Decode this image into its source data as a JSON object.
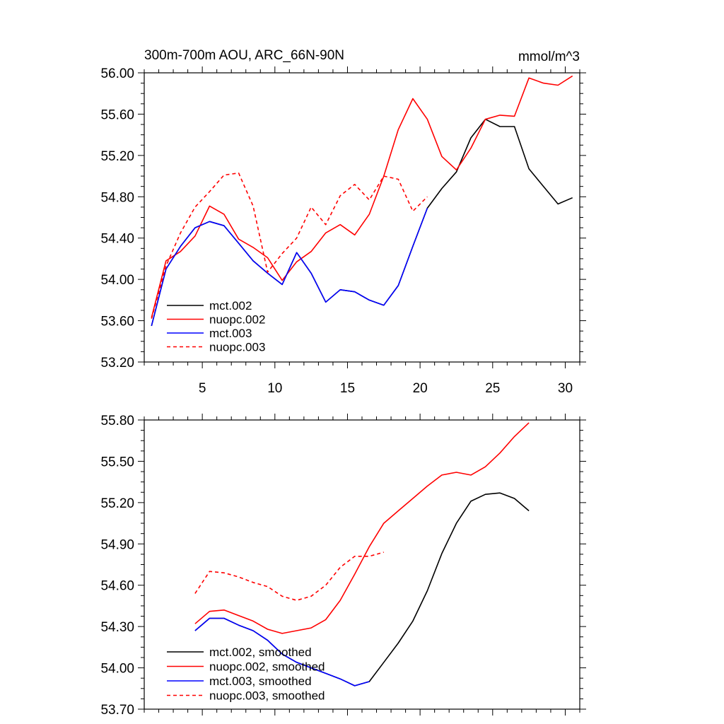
{
  "chart_data": [
    {
      "type": "line",
      "title": "300m-700m AOU, ARC_66N-90N",
      "unit_label": "mmol/m^3",
      "xlim": [
        1,
        31
      ],
      "ylim": [
        53.2,
        56.0
      ],
      "xticks": [
        5,
        10,
        15,
        20,
        25,
        30
      ],
      "xtick_labels": [
        "5",
        "10",
        "15",
        "20",
        "25",
        "30"
      ],
      "yticks": [
        53.2,
        53.6,
        54.0,
        54.4,
        54.8,
        55.2,
        55.6,
        56.0
      ],
      "ytick_labels": [
        "53.20",
        "53.60",
        "54.00",
        "54.40",
        "54.80",
        "55.20",
        "55.60",
        "56.00"
      ],
      "legend_position": "bottom-left",
      "series": [
        {
          "name": "mct.002",
          "color": "#000000",
          "dash": "solid",
          "x": [
            1.5,
            2.5,
            3.5,
            4.5,
            5.5,
            6.5,
            7.5,
            8.5,
            9.5,
            10.5,
            11.5,
            12.5,
            13.5,
            14.5,
            15.5,
            16.5,
            17.5,
            18.5,
            19.5,
            20.5,
            21.5,
            22.5,
            23.5,
            24.5,
            25.5,
            26.5,
            27.5,
            28.5,
            29.5,
            30.5
          ],
          "y": [
            53.55,
            54.1,
            54.32,
            54.5,
            54.56,
            54.52,
            54.35,
            54.18,
            54.06,
            53.95,
            54.26,
            54.06,
            53.78,
            53.9,
            53.88,
            53.8,
            53.75,
            53.94,
            54.32,
            54.69,
            54.88,
            55.04,
            55.37,
            55.55,
            55.48,
            55.48,
            55.07,
            54.9,
            54.73,
            54.79
          ]
        },
        {
          "name": "nuopc.002",
          "color": "#ff0000",
          "dash": "solid",
          "x": [
            1.5,
            2.5,
            3.5,
            4.5,
            5.5,
            6.5,
            7.5,
            8.5,
            9.5,
            10.5,
            11.5,
            12.5,
            13.5,
            14.5,
            15.5,
            16.5,
            17.5,
            18.5,
            19.5,
            20.5,
            21.5,
            22.5,
            23.5,
            24.5,
            25.5,
            26.5,
            27.5,
            28.5,
            29.5,
            30.5
          ],
          "y": [
            53.63,
            54.18,
            54.27,
            54.42,
            54.71,
            54.63,
            54.39,
            54.31,
            54.21,
            53.99,
            54.17,
            54.27,
            54.45,
            54.53,
            54.43,
            54.63,
            55.0,
            55.45,
            55.75,
            55.55,
            55.19,
            55.06,
            55.27,
            55.55,
            55.59,
            55.58,
            55.95,
            55.9,
            55.88,
            55.97
          ]
        },
        {
          "name": "mct.003",
          "color": "#0000ff",
          "dash": "solid",
          "x": [
            1.5,
            2.5,
            3.5,
            4.5,
            5.5,
            6.5,
            7.5,
            8.5,
            9.5,
            10.5,
            11.5,
            12.5,
            13.5,
            14.5,
            15.5,
            16.5,
            17.5,
            18.5,
            19.5,
            20.5
          ],
          "y": [
            53.55,
            54.1,
            54.32,
            54.5,
            54.56,
            54.52,
            54.35,
            54.18,
            54.06,
            53.95,
            54.26,
            54.06,
            53.78,
            53.9,
            53.88,
            53.8,
            53.75,
            53.94,
            54.32,
            54.69
          ]
        },
        {
          "name": "nuopc.003",
          "color": "#ff0000",
          "dash": "dashed",
          "x": [
            1.5,
            2.5,
            3.5,
            4.5,
            5.5,
            6.5,
            7.5,
            8.5,
            9.5,
            10.5,
            11.5,
            12.5,
            13.5,
            14.5,
            15.5,
            16.5,
            17.5,
            18.5,
            19.5,
            20.5
          ],
          "y": [
            53.62,
            54.13,
            54.45,
            54.7,
            54.85,
            55.01,
            55.03,
            54.71,
            54.07,
            54.25,
            54.4,
            54.7,
            54.53,
            54.81,
            54.92,
            54.77,
            55.0,
            54.97,
            54.66,
            54.8
          ]
        }
      ]
    },
    {
      "type": "line",
      "title": "",
      "xlim": [
        1,
        31
      ],
      "ylim": [
        53.7,
        55.8
      ],
      "xticks": [
        5,
        10,
        15,
        20,
        25,
        30
      ],
      "xtick_labels": [
        "",
        "",
        "",
        "",
        "",
        ""
      ],
      "yticks": [
        53.7,
        54.0,
        54.3,
        54.6,
        54.9,
        55.2,
        55.5,
        55.8
      ],
      "ytick_labels": [
        "53.70",
        "54.00",
        "54.30",
        "54.60",
        "54.90",
        "55.20",
        "55.50",
        "55.80"
      ],
      "legend_position": "bottom-left",
      "series": [
        {
          "name": "mct.002, smoothed",
          "color": "#000000",
          "dash": "solid",
          "x": [
            4.5,
            5.5,
            6.5,
            7.5,
            8.5,
            9.5,
            10.5,
            11.5,
            12.5,
            13.5,
            14.5,
            15.5,
            16.5,
            17.5,
            18.5,
            19.5,
            20.5,
            21.5,
            22.5,
            23.5,
            24.5,
            25.5,
            26.5,
            27.5
          ],
          "y": [
            54.27,
            54.36,
            54.36,
            54.31,
            54.27,
            54.2,
            54.1,
            54.04,
            54.0,
            53.96,
            53.92,
            53.87,
            53.9,
            54.04,
            54.18,
            54.34,
            54.56,
            54.83,
            55.05,
            55.21,
            55.26,
            55.27,
            55.23,
            55.14
          ]
        },
        {
          "name": "nuopc.002, smoothed",
          "color": "#ff0000",
          "dash": "solid",
          "x": [
            4.5,
            5.5,
            6.5,
            7.5,
            8.5,
            9.5,
            10.5,
            11.5,
            12.5,
            13.5,
            14.5,
            15.5,
            16.5,
            17.5,
            18.5,
            19.5,
            20.5,
            21.5,
            22.5,
            23.5,
            24.5,
            25.5,
            26.5,
            27.5
          ],
          "y": [
            54.32,
            54.41,
            54.42,
            54.38,
            54.34,
            54.28,
            54.25,
            54.27,
            54.29,
            54.35,
            54.49,
            54.68,
            54.88,
            55.05,
            55.14,
            55.23,
            55.32,
            55.4,
            55.42,
            55.4,
            55.46,
            55.56,
            55.68,
            55.78
          ]
        },
        {
          "name": "mct.003, smoothed",
          "color": "#0000ff",
          "dash": "solid",
          "x": [
            4.5,
            5.5,
            6.5,
            7.5,
            8.5,
            9.5,
            10.5,
            11.5,
            12.5,
            13.5,
            14.5,
            15.5,
            16.5
          ],
          "y": [
            54.27,
            54.36,
            54.36,
            54.31,
            54.27,
            54.2,
            54.1,
            54.04,
            54.0,
            53.96,
            53.92,
            53.87,
            53.9
          ]
        },
        {
          "name": "nuopc.003, smoothed",
          "color": "#ff0000",
          "dash": "dashed",
          "x": [
            4.5,
            5.5,
            6.5,
            7.5,
            8.5,
            9.5,
            10.5,
            11.5,
            12.5,
            13.5,
            14.5,
            15.5,
            16.5,
            17.5
          ],
          "y": [
            54.54,
            54.7,
            54.69,
            54.66,
            54.62,
            54.59,
            54.52,
            54.49,
            54.52,
            54.6,
            54.73,
            54.81,
            54.81,
            54.84
          ]
        }
      ]
    }
  ]
}
